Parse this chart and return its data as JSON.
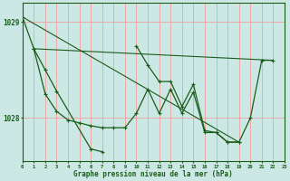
{
  "title": "Graphe pression niveau de la mer (hPa)",
  "background_color": "#cce8e4",
  "grid_color": "#f0a0a0",
  "line_color": "#1a5c1a",
  "xlim": [
    0,
    23
  ],
  "ylim": [
    1027.55,
    1029.2
  ],
  "ytick_positions": [
    1028.0,
    1029.0
  ],
  "ytick_labels": [
    "1028",
    "1029"
  ],
  "xticks": [
    0,
    1,
    2,
    3,
    4,
    5,
    6,
    7,
    8,
    9,
    10,
    11,
    12,
    13,
    14,
    15,
    16,
    17,
    18,
    19,
    20,
    21,
    22,
    23
  ],
  "series1_x": [
    0,
    1,
    2,
    3,
    4,
    5,
    6,
    7,
    8,
    9,
    10,
    11,
    12,
    13,
    14,
    15,
    16,
    17,
    18,
    19,
    20,
    21,
    22
  ],
  "series1_y": [
    1029.05,
    1028.72,
    1028.25,
    1028.07,
    1027.98,
    1027.95,
    1027.92,
    1027.9,
    1027.9,
    1027.9,
    1028.05,
    1028.3,
    1028.05,
    1028.3,
    1028.05,
    1028.27,
    1027.85,
    1027.85,
    1027.75,
    1027.75,
    1028.0,
    1028.6,
    1028.6
  ],
  "series2_x": [
    1,
    2,
    3,
    6,
    7
  ],
  "series2_y": [
    1028.72,
    1028.5,
    1028.28,
    1027.68,
    1027.65
  ],
  "series3_x": [
    10,
    11,
    12,
    13,
    14,
    15,
    16,
    17,
    18,
    19
  ],
  "series3_y": [
    1028.75,
    1028.55,
    1028.38,
    1028.38,
    1028.12,
    1028.35,
    1027.87,
    1027.85,
    1027.75,
    1027.75
  ],
  "trend_line1_x": [
    1,
    22
  ],
  "trend_line1_y": [
    1028.72,
    1028.6
  ],
  "trend_line2_x": [
    0,
    19
  ],
  "trend_line2_y": [
    1029.05,
    1027.75
  ]
}
